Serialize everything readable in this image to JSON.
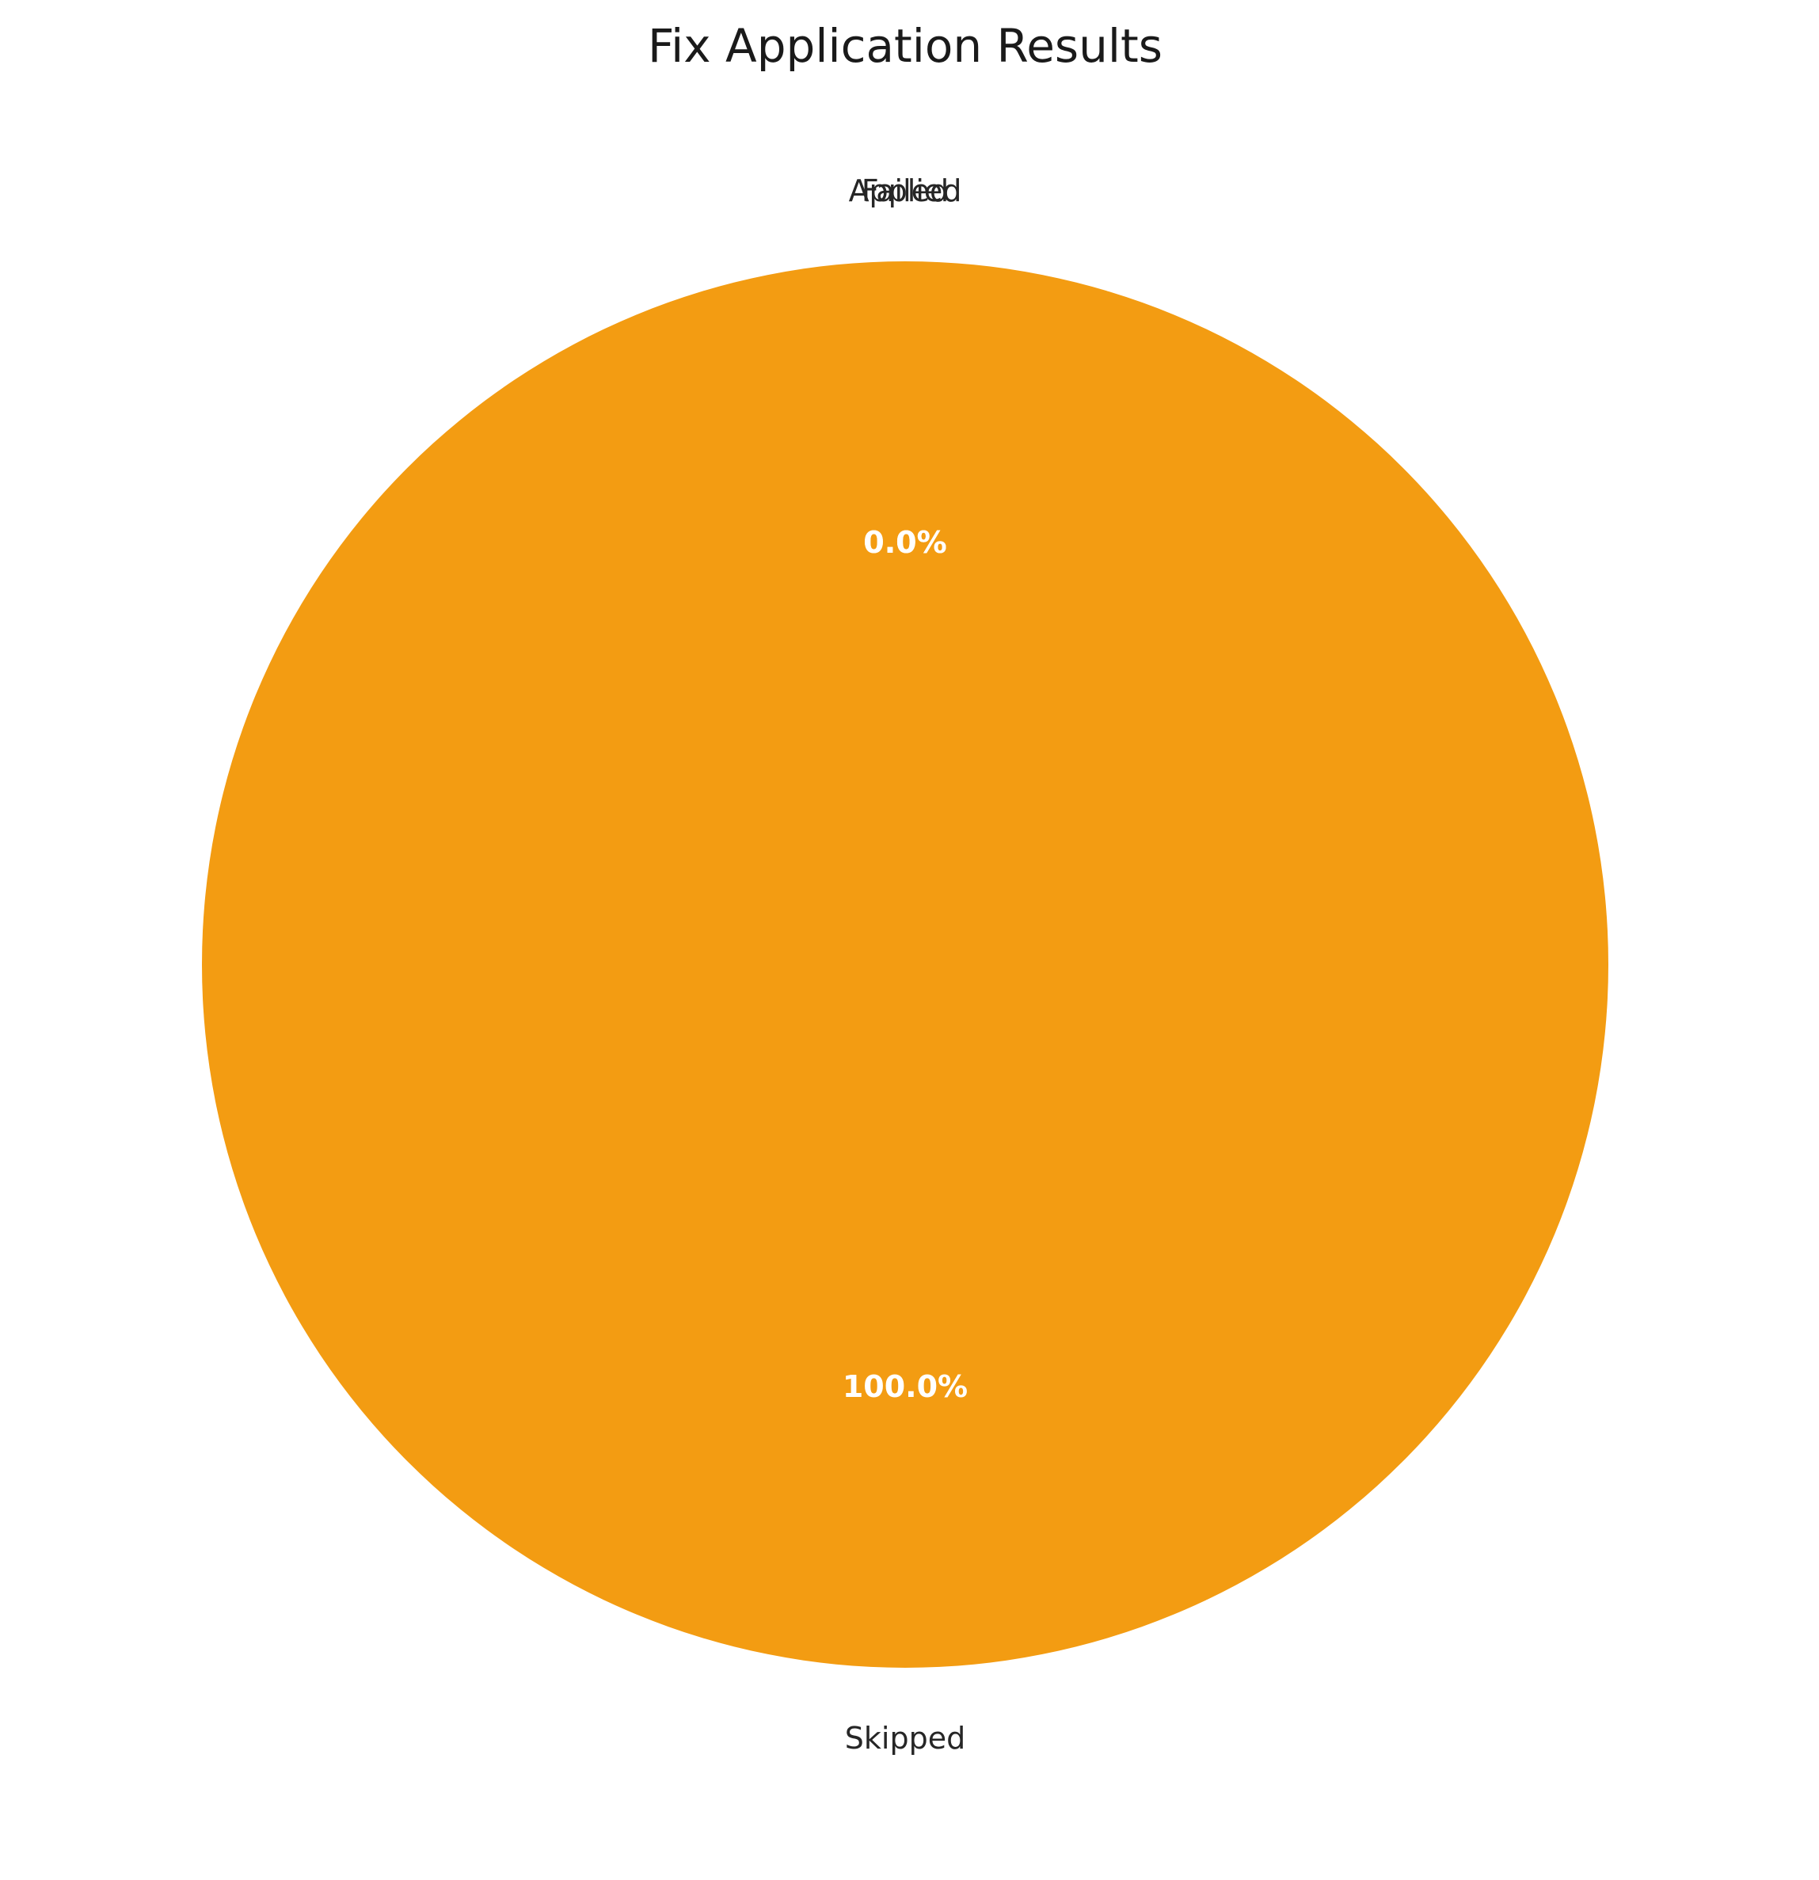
{
  "chart_data": {
    "type": "pie",
    "title": "Fix Application Results",
    "slices": [
      {
        "label": "Applied",
        "value": 0,
        "pct_label": "0.0%",
        "color": "#2ecc71"
      },
      {
        "label": "Failed",
        "value": 0,
        "pct_label": "0.0%",
        "color": "#e74c3c"
      },
      {
        "label": "Skipped",
        "value": 100,
        "pct_label": "100.0%",
        "color": "#f39c12"
      }
    ],
    "start_angle_deg": 90,
    "direction": "counterclockwise",
    "legend": "none"
  }
}
